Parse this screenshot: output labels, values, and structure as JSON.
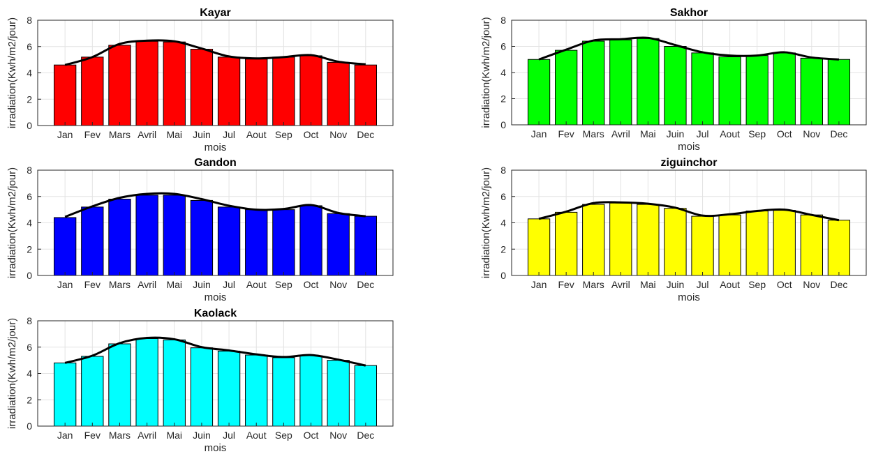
{
  "figure": {
    "background": "#ffffff"
  },
  "chart_data": [
    {
      "type": "bar",
      "title": "Kayar",
      "xlabel": "mois",
      "ylabel": "irradiation(Kwh/m2/jour)",
      "ylim": [
        0,
        8
      ],
      "yticks": [
        0,
        2,
        4,
        6,
        8
      ],
      "grid": true,
      "bar_color": "#ff0000",
      "curve_color": "#000000",
      "categories": [
        "Jan",
        "Fev",
        "Mars",
        "Avril",
        "Mai",
        "Juin",
        "Jul",
        "Aout",
        "Sep",
        "Oct",
        "Nov",
        "Dec"
      ],
      "values": [
        4.6,
        5.2,
        6.1,
        6.4,
        6.35,
        5.8,
        5.2,
        5.05,
        5.2,
        5.3,
        4.8,
        4.6
      ],
      "curve": [
        4.6,
        5.2,
        6.2,
        6.45,
        6.4,
        5.85,
        5.25,
        5.1,
        5.2,
        5.35,
        4.85,
        4.65
      ]
    },
    {
      "type": "bar",
      "title": "Sakhor",
      "xlabel": "mois",
      "ylabel": "irradiation(Kwh/m2/jour)",
      "ylim": [
        0,
        8
      ],
      "yticks": [
        0,
        2,
        4,
        6,
        8
      ],
      "grid": true,
      "bar_color": "#00ff00",
      "curve_color": "#000000",
      "categories": [
        "Jan",
        "Fev",
        "Mars",
        "Avril",
        "Mai",
        "Juin",
        "Jul",
        "Aout",
        "Sep",
        "Oct",
        "Nov",
        "Dec"
      ],
      "values": [
        5.0,
        5.7,
        6.4,
        6.5,
        6.6,
        6.0,
        5.5,
        5.2,
        5.3,
        5.5,
        5.1,
        5.0
      ],
      "curve": [
        5.0,
        5.75,
        6.45,
        6.55,
        6.65,
        6.1,
        5.55,
        5.3,
        5.3,
        5.55,
        5.15,
        5.0
      ]
    },
    {
      "type": "bar",
      "title": "Gandon",
      "xlabel": "mois",
      "ylabel": "irradiation(Kwh/m2/jour)",
      "ylim": [
        0,
        8
      ],
      "yticks": [
        0,
        2,
        4,
        6,
        8
      ],
      "grid": true,
      "bar_color": "#0000ff",
      "curve_color": "#000000",
      "categories": [
        "Jan",
        "Fev",
        "Mars",
        "Avril",
        "Mai",
        "Juin",
        "Jul",
        "Aout",
        "Sep",
        "Oct",
        "Nov",
        "Dec"
      ],
      "values": [
        4.4,
        5.2,
        5.8,
        6.1,
        6.1,
        5.7,
        5.2,
        5.0,
        5.0,
        5.3,
        4.7,
        4.5
      ],
      "curve": [
        4.45,
        5.25,
        5.9,
        6.2,
        6.2,
        5.8,
        5.3,
        5.0,
        5.05,
        5.35,
        4.75,
        4.5
      ]
    },
    {
      "type": "bar",
      "title": "ziguinchor",
      "xlabel": "mois",
      "ylabel": "irradiation(Kwh/m2/jour)",
      "ylim": [
        0,
        8
      ],
      "yticks": [
        0,
        2,
        4,
        6,
        8
      ],
      "grid": true,
      "bar_color": "#ffff00",
      "curve_color": "#000000",
      "categories": [
        "Jan",
        "Fev",
        "Mars",
        "Avril",
        "Mai",
        "Juin",
        "Jul",
        "Aout",
        "Sep",
        "Oct",
        "Nov",
        "Dec"
      ],
      "values": [
        4.3,
        4.8,
        5.4,
        5.5,
        5.4,
        5.1,
        4.5,
        4.6,
        4.9,
        4.95,
        4.6,
        4.2
      ],
      "curve": [
        4.3,
        4.85,
        5.5,
        5.55,
        5.45,
        5.15,
        4.55,
        4.65,
        4.9,
        5.0,
        4.6,
        4.2
      ]
    },
    {
      "type": "bar",
      "title": "Kaolack",
      "xlabel": "mois",
      "ylabel": "irradiation(Kwh/m2/jour)",
      "ylim": [
        0,
        8
      ],
      "yticks": [
        0,
        2,
        4,
        6,
        8
      ],
      "grid": true,
      "bar_color": "#00ffff",
      "curve_color": "#000000",
      "categories": [
        "Jan",
        "Fev",
        "Mars",
        "Avril",
        "Mai",
        "Juin",
        "Jul",
        "Aout",
        "Sep",
        "Oct",
        "Nov",
        "Dec"
      ],
      "values": [
        4.8,
        5.3,
        6.25,
        6.65,
        6.55,
        5.95,
        5.7,
        5.4,
        5.2,
        5.35,
        5.0,
        4.6
      ],
      "curve": [
        4.8,
        5.35,
        6.3,
        6.7,
        6.6,
        6.0,
        5.75,
        5.45,
        5.25,
        5.4,
        5.05,
        4.6
      ]
    }
  ]
}
